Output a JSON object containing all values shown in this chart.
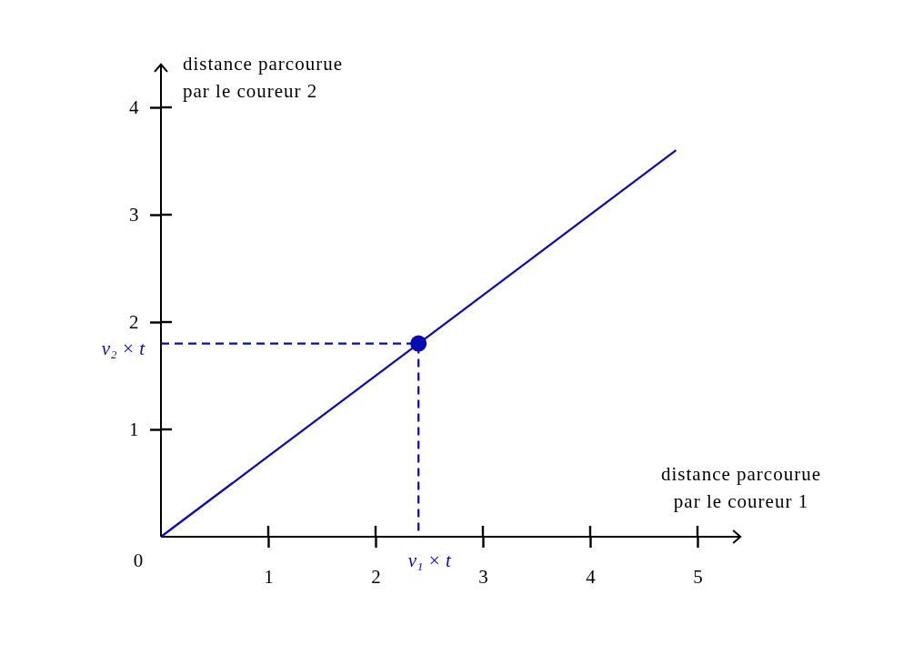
{
  "chart_data": {
    "type": "line",
    "xlabel": "distance parcourue\npar le coureur 1",
    "ylabel": "distance parcourue\npar le coureur 2",
    "xlim": [
      0,
      5.4
    ],
    "ylim": [
      0,
      4.4
    ],
    "xticks": [
      1,
      2,
      3,
      4,
      5
    ],
    "yticks": [
      1,
      2,
      3,
      4
    ],
    "grid": false,
    "line_style": "solid",
    "series": [
      {
        "type": "line",
        "x": [
          0,
          4.8
        ],
        "values": [
          0,
          3.6
        ],
        "color": "#0a0ab4",
        "marker": "none"
      },
      {
        "type": "line",
        "x": [
          0,
          2.4,
          2.4
        ],
        "values": [
          1.8,
          1.8,
          0
        ],
        "color": "#0a0ab4",
        "line_style": "dashed",
        "marker": "none"
      },
      {
        "type": "scatter",
        "x": [
          2.4
        ],
        "values": [
          1.8
        ],
        "color": "#0a0ab4",
        "marker": "circle"
      }
    ],
    "annotations": [
      "0",
      {
        "text": "v₁ × t",
        "x": 2.4,
        "y": 0
      },
      {
        "text": "v₂ × t",
        "x": 0,
        "y": 1.8
      }
    ]
  }
}
